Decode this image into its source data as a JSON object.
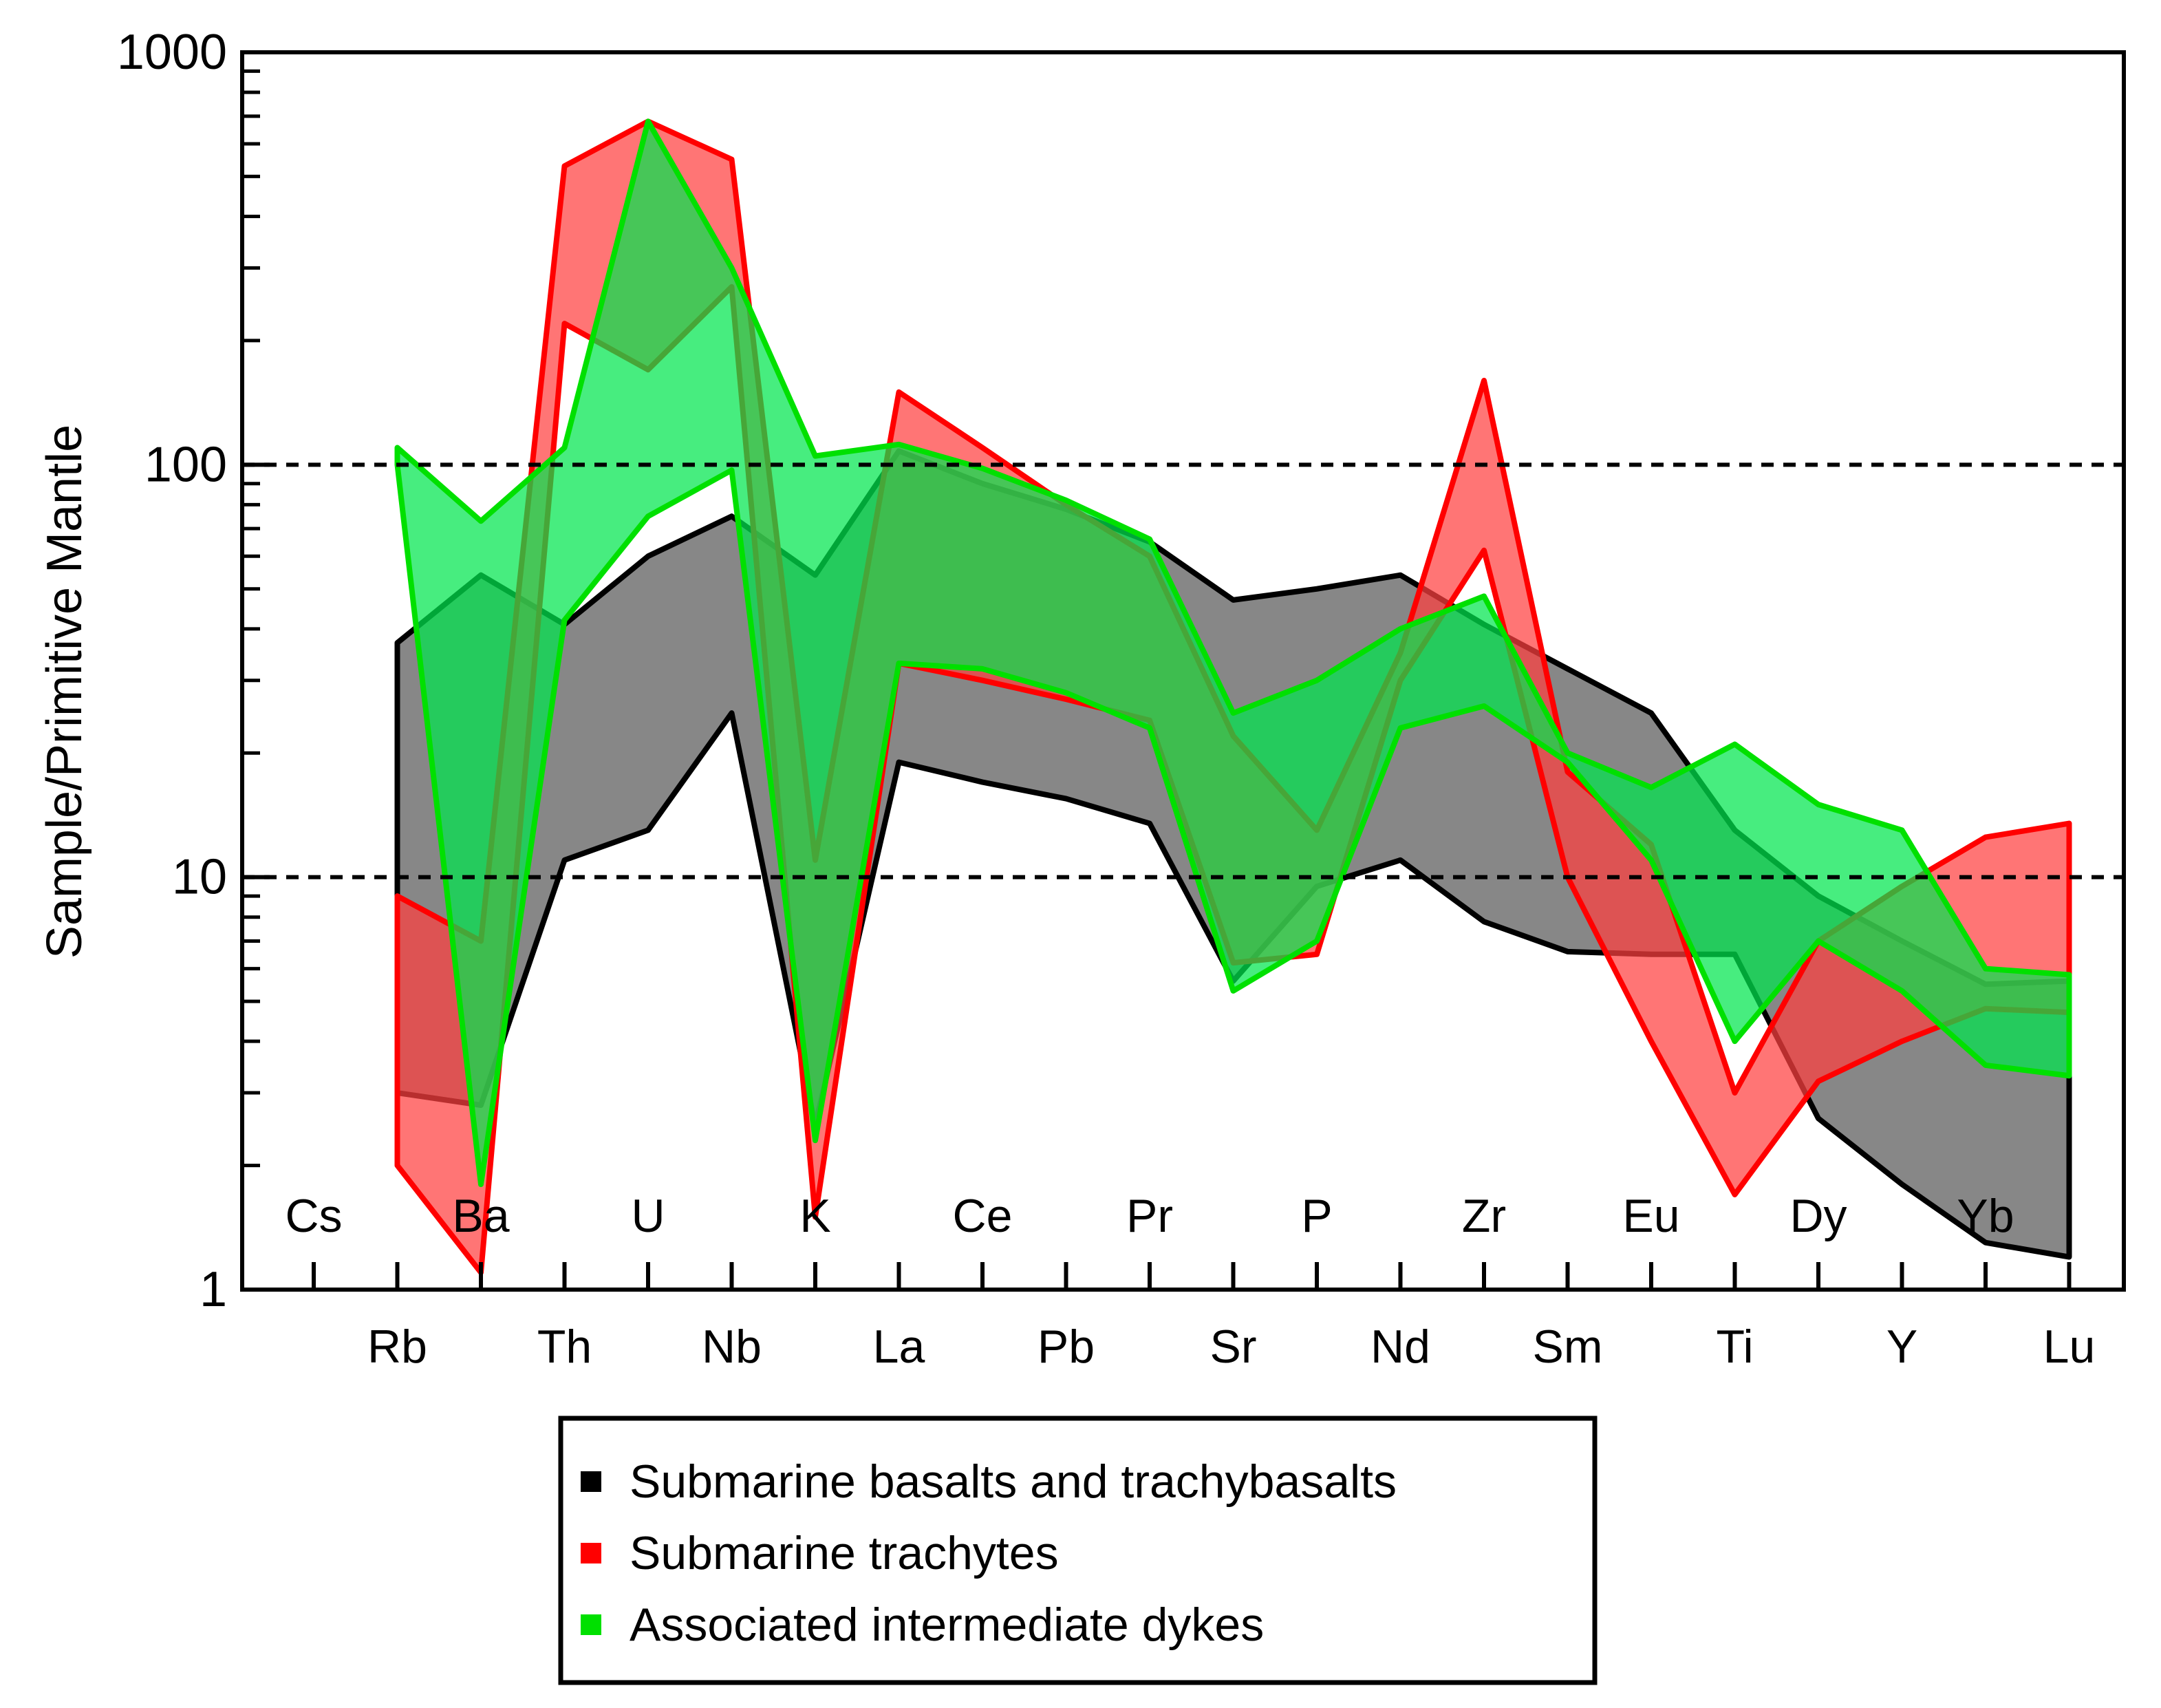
{
  "chart_data": {
    "type": "area",
    "title": "",
    "xlabel": "",
    "ylabel": "Sample/Primitive Mantle",
    "yscale": "log",
    "ylim": [
      1,
      1000
    ],
    "y_ticks": [
      1,
      10,
      100,
      1000
    ],
    "reference_lines": [
      10,
      100
    ],
    "grid": false,
    "legend_position": "bottom-center",
    "elements": [
      "Cs",
      "Rb",
      "Ba",
      "Th",
      "U",
      "Nb",
      "K",
      "La",
      "Ce",
      "Pb",
      "Pr",
      "Sr",
      "P",
      "Nd",
      "Zr",
      "Sm",
      "Eu",
      "Ti",
      "Dy",
      "Y",
      "Yb",
      "Lu"
    ],
    "top_row_elements": [
      "Cs",
      "Ba",
      "U",
      "K",
      "Ce",
      "Pr",
      "P",
      "Zr",
      "Eu",
      "Dy",
      "Yb"
    ],
    "bottom_row_elements": [
      "Rb",
      "Th",
      "Nb",
      "La",
      "Pb",
      "Sr",
      "Nd",
      "Sm",
      "Ti",
      "Y",
      "Lu"
    ],
    "series": [
      {
        "name": "Submarine basalts and trachybasalts",
        "color": "#000000",
        "fill": "#595959",
        "x": [
          "Rb",
          "Ba",
          "Th",
          "U",
          "Nb",
          "K",
          "La",
          "Ce",
          "Pb",
          "Pr",
          "Sr",
          "P",
          "Nd",
          "Zr",
          "Sm",
          "Eu",
          "Ti",
          "Dy",
          "Y",
          "Yb",
          "Lu"
        ],
        "upper": [
          37,
          54,
          41,
          60,
          75,
          54,
          108,
          90,
          78,
          65,
          47,
          50,
          54,
          41,
          32,
          25,
          13,
          9,
          7,
          5.5,
          5.6
        ],
        "lower": [
          3,
          2.8,
          11,
          13,
          25,
          2.5,
          19,
          17,
          15.5,
          13.5,
          5.6,
          9.5,
          11,
          7.8,
          6.6,
          6.5,
          6.5,
          2.6,
          1.8,
          1.3,
          1.2
        ]
      },
      {
        "name": "Submarine trachytes",
        "color": "#ff0000",
        "fill": "#ff4040",
        "x": [
          "Rb",
          "Ba",
          "Th",
          "U",
          "Nb",
          "K",
          "La",
          "Ce",
          "Pb",
          "Pr",
          "Sr",
          "P",
          "Nd",
          "Zr",
          "Sm",
          "Eu",
          "Ti",
          "Dy",
          "Y",
          "Yb",
          "Lu"
        ],
        "upper": [
          9,
          7,
          530,
          680,
          550,
          11,
          150,
          110,
          80,
          60,
          22,
          13,
          35,
          160,
          18,
          12,
          3,
          7,
          9.5,
          12.5,
          13.5
        ],
        "lower": [
          2,
          1.1,
          220,
          170,
          270,
          1.5,
          33,
          30,
          27,
          24,
          6.2,
          6.5,
          30,
          62,
          10,
          4,
          1.7,
          3.2,
          4,
          4.8,
          4.7
        ]
      },
      {
        "name": "Associated intermediate dykes",
        "color": "#00e000",
        "fill": "#00e64d",
        "x": [
          "Rb",
          "Ba",
          "Th",
          "U",
          "Nb",
          "K",
          "La",
          "Ce",
          "Pb",
          "Pr",
          "Sr",
          "P",
          "Nd",
          "Zr",
          "Sm",
          "Eu",
          "Ti",
          "Dy",
          "Y",
          "Yb",
          "Lu"
        ],
        "upper": [
          110,
          73,
          110,
          680,
          300,
          105,
          112,
          98,
          82,
          66,
          25,
          30,
          40,
          48,
          20,
          16.5,
          21,
          15,
          13,
          6,
          5.8
        ],
        "lower": [
          100,
          1.8,
          42,
          75,
          97,
          2.3,
          33,
          32,
          28,
          23,
          5.3,
          7,
          23,
          26,
          19,
          11,
          4,
          7,
          5.3,
          3.5,
          3.3
        ]
      }
    ]
  }
}
